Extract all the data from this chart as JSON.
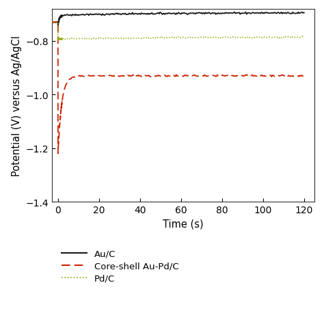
{
  "title": "",
  "xlabel": "Time (s)",
  "ylabel": "Potential (V) versus Ag/AgCl",
  "xlim": [
    -3,
    125
  ],
  "ylim": [
    -1.4,
    -0.68
  ],
  "xticks": [
    0,
    20,
    40,
    60,
    80,
    100,
    120
  ],
  "yticks": [
    -1.4,
    -1.2,
    -1.0,
    -0.8
  ],
  "au_color": "#1a1a1a",
  "core_shell_color": "#cc2200",
  "pd_color": "#88aa00",
  "legend_labels": [
    "Au/C",
    "Core-shell Au-Pd/C",
    "Pd/C"
  ],
  "background_color": "#ffffff",
  "axes_linewidth": 0.8,
  "font_size": 10.5,
  "tick_labelsize": 10
}
